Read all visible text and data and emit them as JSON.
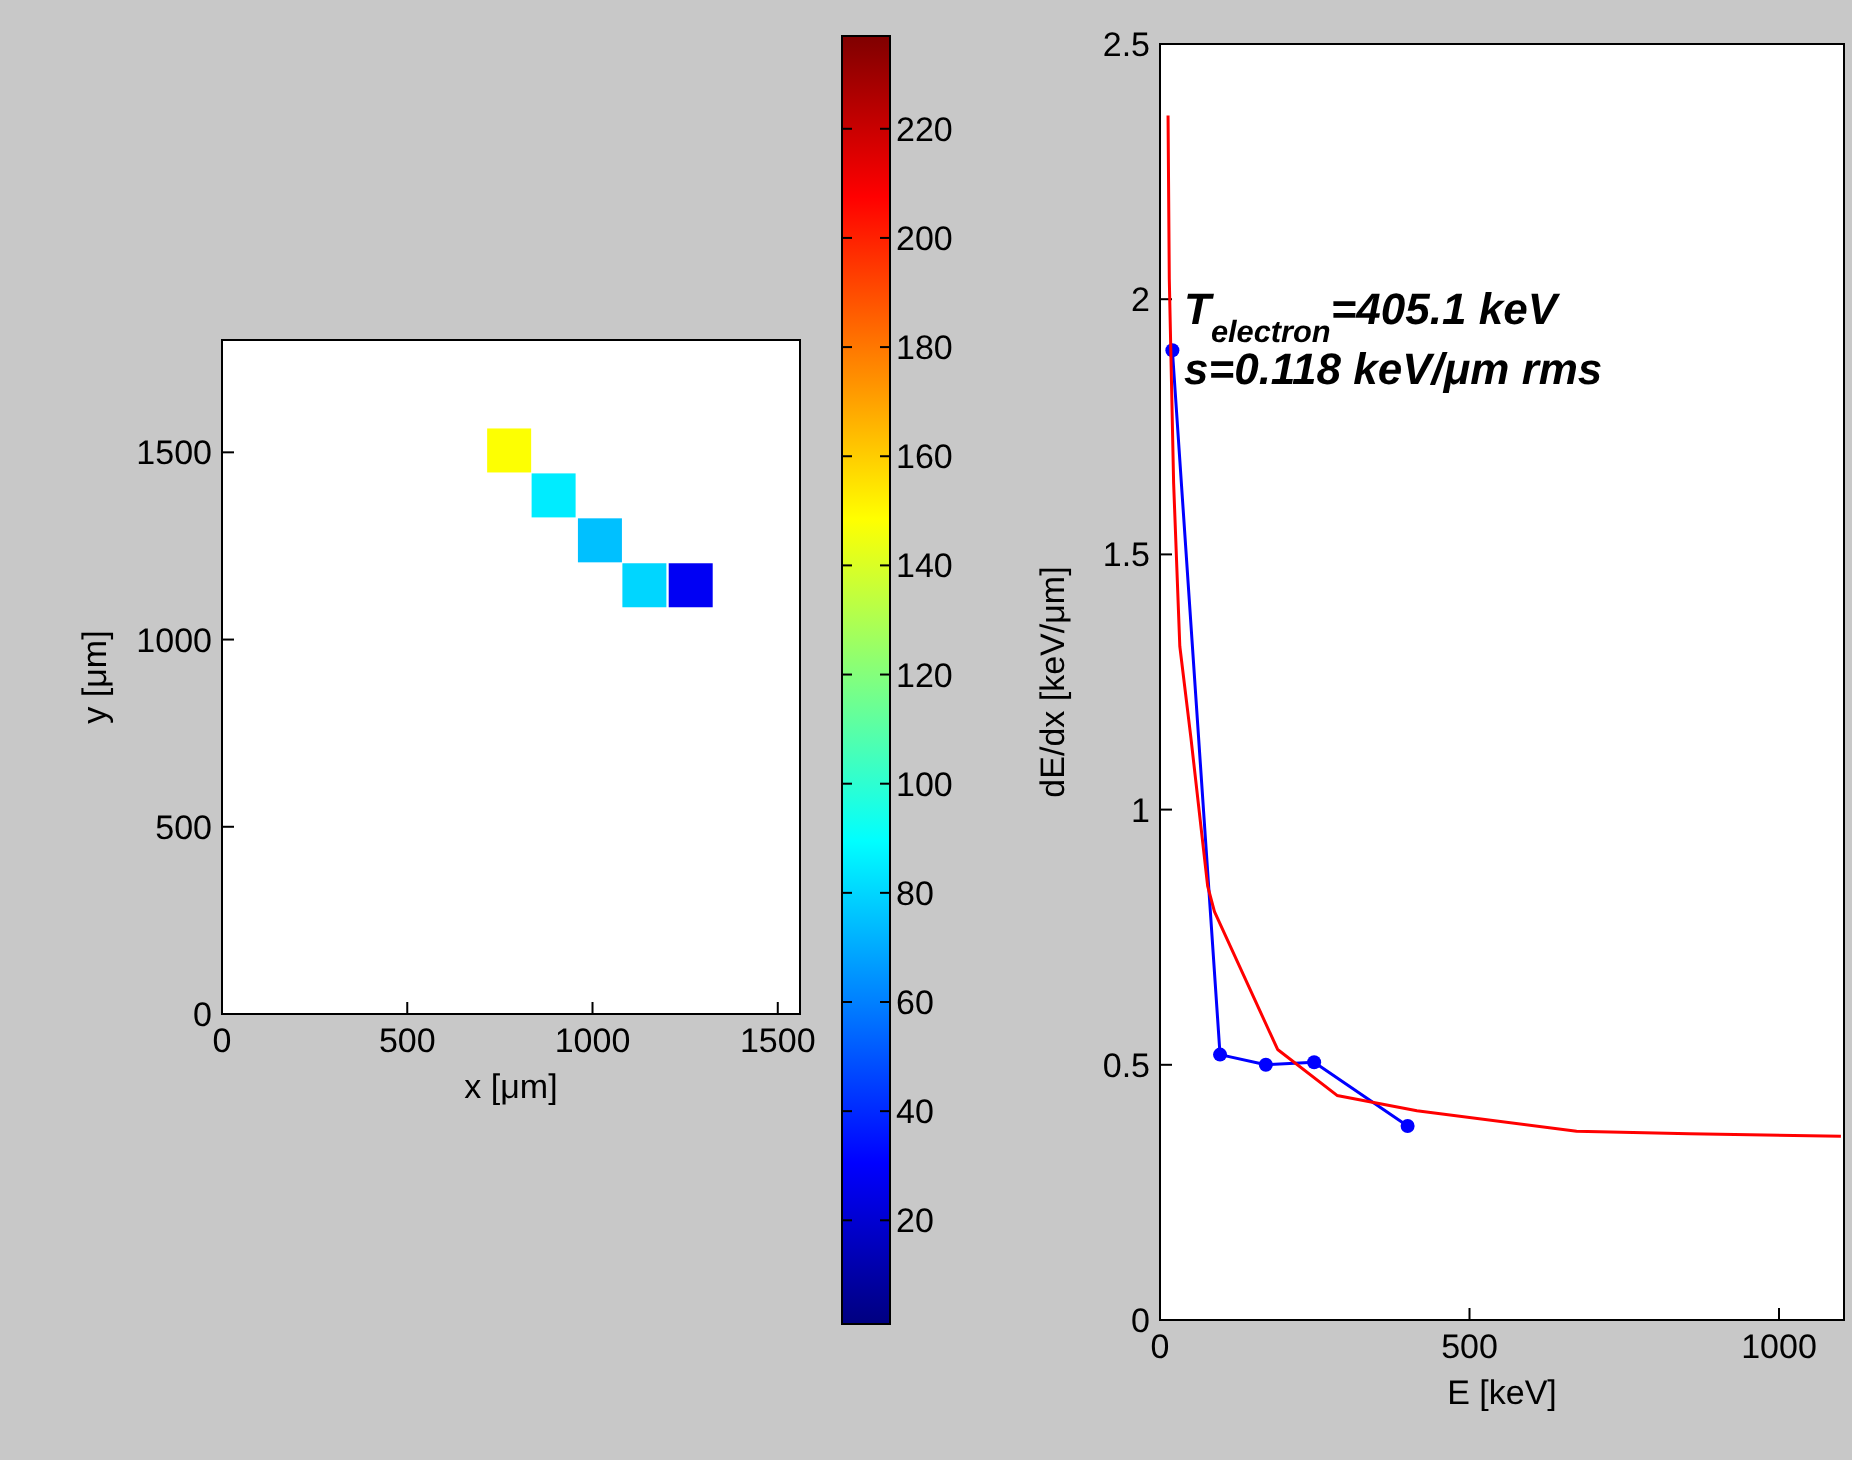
{
  "chart_data": [
    {
      "type": "scatter",
      "xlabel": "x [μm]",
      "ylabel": "y [μm]",
      "marker": "square",
      "x": [
        775,
        895,
        1020,
        1140,
        1265
      ],
      "values": [
        1505,
        1385,
        1265,
        1145,
        1145
      ],
      "cvalues": [
        148,
        85,
        75,
        80,
        28
      ],
      "xlim": [
        0,
        1560
      ],
      "ylim": [
        0,
        1800
      ],
      "xticks": [
        0,
        500,
        1000,
        1500
      ],
      "yticks": [
        0,
        500,
        1000,
        1500
      ],
      "clim": [
        1,
        237
      ],
      "cticks": [
        20,
        40,
        60,
        80,
        100,
        120,
        140,
        160,
        180,
        200,
        220
      ],
      "grid": false
    },
    {
      "type": "line",
      "xlabel": "E [keV]",
      "ylabel": "dE/dx [keV/μm]",
      "annotations": [
        "T$_{electron}$=405.1 keV",
        "s=0.118 keV/μm rms"
      ],
      "series": [
        {
          "color": "#0000ff",
          "marker": "circle",
          "x": [
            20,
            97,
            171,
            249,
            400
          ],
          "values": [
            1.9,
            0.52,
            0.5,
            0.505,
            0.38
          ]
        },
        {
          "color": "#ff0000",
          "marker": "none",
          "x": [
            13,
            15,
            22,
            32,
            50,
            77,
            88,
            190,
            286,
            415,
            673,
            855,
            1100
          ],
          "values": [
            2.36,
            2.04,
            1.64,
            1.32,
            1.14,
            0.85,
            0.8,
            0.53,
            0.44,
            0.41,
            0.37,
            0.365,
            0.36
          ]
        }
      ],
      "xlim": [
        0,
        1105
      ],
      "ylim": [
        0,
        2.5
      ],
      "xticks": [
        0,
        500,
        1000
      ],
      "yticks": [
        0,
        0.5,
        1,
        1.5,
        2,
        2.5
      ],
      "grid": false
    }
  ]
}
